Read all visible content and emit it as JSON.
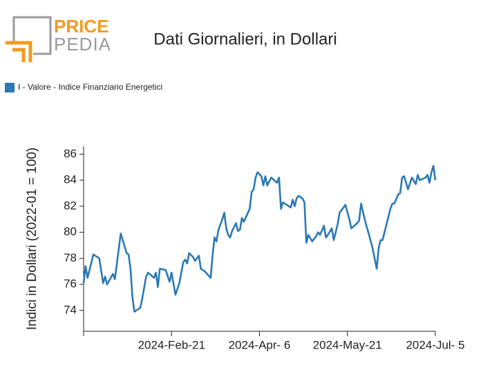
{
  "logo": {
    "top": "PRICE",
    "bottom": "PEDIA"
  },
  "chart_data": {
    "type": "line",
    "title": "Dati Giornalieri, in Dollari",
    "ylabel": "Indici in Dollari (2022-01 = 100)",
    "legend": "top-left",
    "xlim": [
      "2024-01-07",
      "2024-07-05"
    ],
    "xticks": [
      {
        "value": "2024-01-07",
        "label": null
      },
      {
        "value": "2024-02-21",
        "label": "2024-Feb-21"
      },
      {
        "value": "2024-04-06",
        "label": "2024-Apr- 6"
      },
      {
        "value": "2024-05-21",
        "label": "2024-May-21"
      },
      {
        "value": "2024-07-05",
        "label": "2024-Jul- 5"
      }
    ],
    "ylim": [
      72.4,
      86.6
    ],
    "yticks": [
      74,
      76,
      78,
      80,
      82,
      84,
      86
    ],
    "x": [
      "2024-01-07",
      "2024-01-08",
      "2024-01-09",
      "2024-01-12",
      "2024-01-15",
      "2024-01-17",
      "2024-01-18",
      "2024-01-19",
      "2024-01-22",
      "2024-01-23",
      "2024-01-26",
      "2024-01-29",
      "2024-01-30",
      "2024-01-31",
      "2024-02-01",
      "2024-02-02",
      "2024-02-05",
      "2024-02-06",
      "2024-02-08",
      "2024-02-09",
      "2024-02-12",
      "2024-02-13",
      "2024-02-14",
      "2024-02-15",
      "2024-02-18",
      "2024-02-20",
      "2024-02-21",
      "2024-02-23",
      "2024-02-25",
      "2024-02-27",
      "2024-02-28",
      "2024-02-29",
      "2024-03-01",
      "2024-03-03",
      "2024-03-04",
      "2024-03-06",
      "2024-03-07",
      "2024-03-09",
      "2024-03-12",
      "2024-03-13",
      "2024-03-14",
      "2024-03-15",
      "2024-03-16",
      "2024-03-18",
      "2024-03-19",
      "2024-03-20",
      "2024-03-21",
      "2024-03-22",
      "2024-03-23",
      "2024-03-25",
      "2024-03-26",
      "2024-03-27",
      "2024-03-28",
      "2024-03-29",
      "2024-04-01",
      "2024-04-02",
      "2024-04-03",
      "2024-04-04",
      "2024-04-05",
      "2024-04-07",
      "2024-04-08",
      "2024-04-09",
      "2024-04-10",
      "2024-04-12",
      "2024-04-15",
      "2024-04-16",
      "2024-04-17",
      "2024-04-18",
      "2024-04-20",
      "2024-04-22",
      "2024-04-23",
      "2024-04-24",
      "2024-04-25",
      "2024-04-26",
      "2024-04-28",
      "2024-04-29",
      "2024-04-30",
      "2024-05-01",
      "2024-05-03",
      "2024-05-05",
      "2024-05-06",
      "2024-05-07",
      "2024-05-09",
      "2024-05-10",
      "2024-05-11",
      "2024-05-13",
      "2024-05-14",
      "2024-05-16",
      "2024-05-17",
      "2024-05-20",
      "2024-05-22",
      "2024-05-23",
      "2024-05-26",
      "2024-05-27",
      "2024-05-28",
      "2024-05-30",
      "2024-06-02",
      "2024-06-03",
      "2024-06-05",
      "2024-06-06",
      "2024-06-07",
      "2024-06-08",
      "2024-06-10",
      "2024-06-12",
      "2024-06-13",
      "2024-06-14",
      "2024-06-16",
      "2024-06-17",
      "2024-06-18",
      "2024-06-19",
      "2024-06-21",
      "2024-06-23",
      "2024-06-25",
      "2024-06-26",
      "2024-06-27",
      "2024-06-30",
      "2024-07-01",
      "2024-07-02",
      "2024-07-03",
      "2024-07-04",
      "2024-07-05"
    ],
    "series": [
      {
        "name": "I - Valore - Indice Finanziario Energetici",
        "color": "#2a78b5",
        "values": [
          76.1,
          77.4,
          76.5,
          78.3,
          78.0,
          76.1,
          76.6,
          76.0,
          76.8,
          76.4,
          79.9,
          78.4,
          78.3,
          77.2,
          75.0,
          73.9,
          74.2,
          74.9,
          76.6,
          76.9,
          76.5,
          76.9,
          75.8,
          77.2,
          77.1,
          76.2,
          76.9,
          75.2,
          76.1,
          77.7,
          77.9,
          77.6,
          78.4,
          78.1,
          77.8,
          78.2,
          77.2,
          77.0,
          76.5,
          78.2,
          79.6,
          79.3,
          80.2,
          81.0,
          81.5,
          80.3,
          79.8,
          79.6,
          80.1,
          80.7,
          80.1,
          80.2,
          81.1,
          80.8,
          81.8,
          83.1,
          83.3,
          84.2,
          84.6,
          84.3,
          83.6,
          84.3,
          83.6,
          84.2,
          83.8,
          84.2,
          81.8,
          82.3,
          82.1,
          81.9,
          82.5,
          82.0,
          82.6,
          82.8,
          82.6,
          82.3,
          79.2,
          79.8,
          79.3,
          79.7,
          80.0,
          79.8,
          80.5,
          79.6,
          79.8,
          80.3,
          79.4,
          80.6,
          81.5,
          82.1,
          81.0,
          80.3,
          80.7,
          80.9,
          82.2,
          80.9,
          79.3,
          78.7,
          77.2,
          78.8,
          79.4,
          79.4,
          80.6,
          81.8,
          82.2,
          82.2,
          82.9,
          83.0,
          84.2,
          84.3,
          83.3,
          84.2,
          83.7,
          84.4,
          84.0,
          84.2,
          84.4,
          83.8,
          84.6,
          85.1,
          84.0
        ]
      }
    ]
  }
}
